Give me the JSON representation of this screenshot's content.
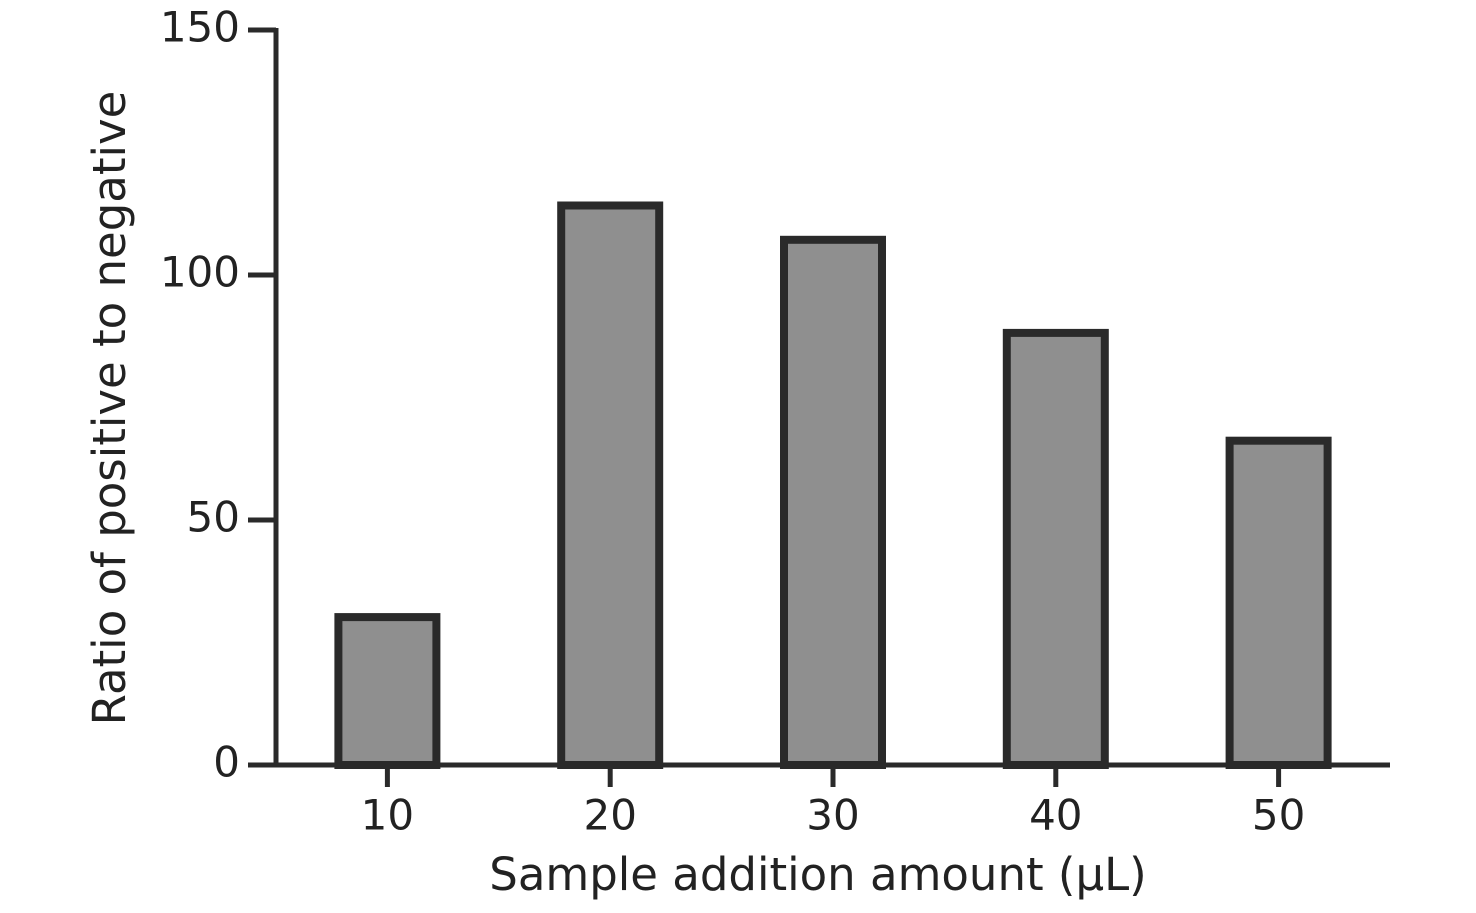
{
  "chart_data": {
    "type": "bar",
    "x_label": "Sample addition amount (µL)",
    "y_label": "Ratio of positive to negative",
    "categories": [
      "10",
      "20",
      "30",
      "40",
      "50"
    ],
    "values": [
      31,
      115,
      108,
      89,
      67
    ],
    "color": "#8f8f8f",
    "ylim": [
      0,
      150
    ],
    "yticks": [
      0,
      50,
      100,
      150
    ],
    "grid": false
  }
}
